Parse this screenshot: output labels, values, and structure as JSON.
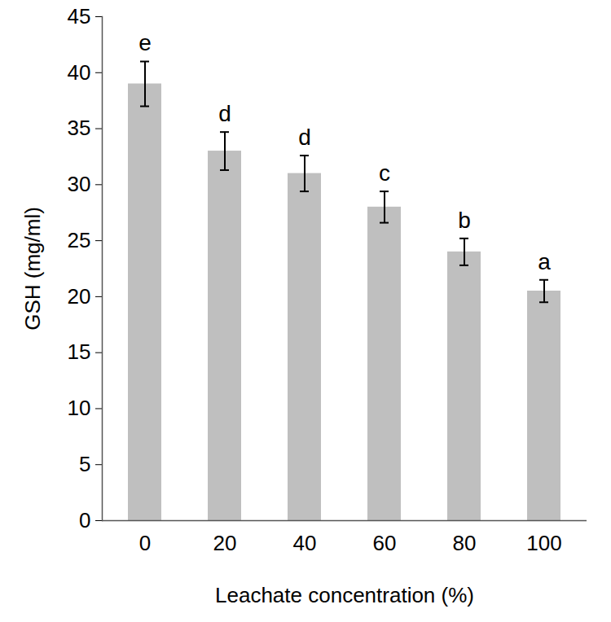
{
  "chart_data": {
    "type": "bar",
    "x_label": "Leachate concentration (%)",
    "y_label": "GSH (mg/ml)",
    "categories": [
      "0",
      "20",
      "40",
      "60",
      "80",
      "100"
    ],
    "values": [
      39,
      33,
      31,
      28,
      24,
      20.5
    ],
    "errors": [
      2,
      1.7,
      1.6,
      1.4,
      1.2,
      1.0
    ],
    "letters": [
      "e",
      "d",
      "d",
      "c",
      "b",
      "a"
    ],
    "color": "#bfbfbf",
    "ylim": [
      0,
      45
    ],
    "yticks": [
      0,
      5,
      10,
      15,
      20,
      25,
      30,
      35,
      40,
      45
    ],
    "grid": false
  }
}
